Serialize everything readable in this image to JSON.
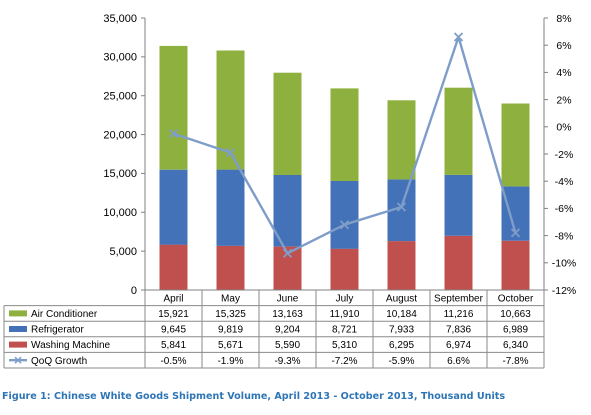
{
  "chart_data": {
    "type": "bar",
    "stacked": true,
    "categories": [
      "April",
      "May",
      "June",
      "July",
      "August",
      "September",
      "October"
    ],
    "series": [
      {
        "name": "Air Conditioner",
        "type": "bar",
        "axis": "left",
        "color": "#8eb03e",
        "values": [
          15921,
          15325,
          13163,
          11910,
          10184,
          11216,
          10663
        ],
        "labels": [
          "15,921",
          "15,325",
          "13,163",
          "11,910",
          "10,184",
          "11,216",
          "10,663"
        ]
      },
      {
        "name": "Refrigerator",
        "type": "bar",
        "axis": "left",
        "color": "#4472b8",
        "values": [
          9645,
          9819,
          9204,
          8721,
          7933,
          7836,
          6989
        ],
        "labels": [
          "9,645",
          "9,819",
          "9,204",
          "8,721",
          "7,933",
          "7,836",
          "6,989"
        ]
      },
      {
        "name": "Washing Machine",
        "type": "bar",
        "axis": "left",
        "color": "#c0504d",
        "values": [
          5841,
          5671,
          5590,
          5310,
          6295,
          6974,
          6340
        ],
        "labels": [
          "5,841",
          "5,671",
          "5,590",
          "5,310",
          "6,295",
          "6,974",
          "6,340"
        ]
      },
      {
        "name": "QoQ Growth",
        "type": "line",
        "axis": "right",
        "color": "#7f9dc9",
        "values": [
          -0.5,
          -1.9,
          -9.3,
          -7.2,
          -5.9,
          6.6,
          -7.8
        ],
        "labels": [
          "-0.5%",
          "-1.9%",
          "-9.3%",
          "-7.2%",
          "-5.9%",
          "6.6%",
          "-7.8%"
        ]
      }
    ],
    "stack_order": [
      "Washing Machine",
      "Refrigerator",
      "Air Conditioner"
    ],
    "table_order": [
      "Air Conditioner",
      "Refrigerator",
      "Washing Machine",
      "QoQ Growth"
    ],
    "ylim": [
      0,
      35000
    ],
    "y_ticks": [
      0,
      5000,
      10000,
      15000,
      20000,
      25000,
      30000,
      35000
    ],
    "y_tick_labels": [
      "0",
      "5,000",
      "10,000",
      "15,000",
      "20,000",
      "25,000",
      "30,000",
      "35,000"
    ],
    "y2lim": [
      -12,
      8
    ],
    "y2_ticks": [
      -12,
      -10,
      -8,
      -6,
      -4,
      -2,
      0,
      2,
      4,
      6,
      8
    ],
    "y2_tick_labels": [
      "-12%",
      "-10%",
      "-8%",
      "-6%",
      "-4%",
      "-2%",
      "0%",
      "2%",
      "4%",
      "6%",
      "8%"
    ],
    "grid": "none",
    "legend": "data table below the chart",
    "caption": "Figure 1: Chinese White Goods Shipment Volume, April 2013 - October 2013, Thousand  Units"
  }
}
